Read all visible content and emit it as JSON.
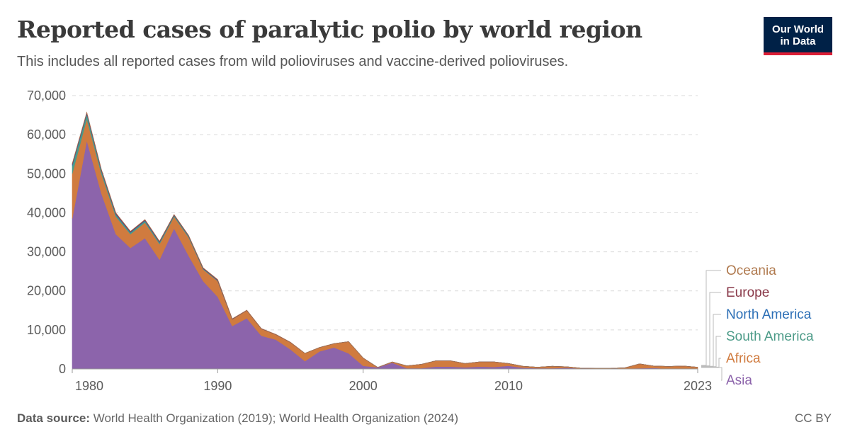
{
  "header": {
    "title": "Reported cases of paralytic polio by world region",
    "subtitle": "This includes all reported cases from wild polioviruses and vaccine-derived polioviruses."
  },
  "logo": {
    "line1": "Our World",
    "line2": "in Data",
    "bg_color": "#002147",
    "accent_color": "#dc1e36"
  },
  "footer": {
    "source_label": "Data source:",
    "source_text": "World Health Organization (2019); World Health Organization (2024)",
    "license": "CC BY"
  },
  "chart_data": {
    "type": "area",
    "stacked": true,
    "title": "Reported cases of paralytic polio by world region",
    "xlabel": "",
    "ylabel": "",
    "ylim": [
      0,
      70000
    ],
    "xlim": [
      1980,
      2023
    ],
    "yticks": [
      0,
      10000,
      20000,
      30000,
      40000,
      50000,
      60000,
      70000
    ],
    "ytick_labels": [
      "0",
      "10,000",
      "20,000",
      "30,000",
      "40,000",
      "50,000",
      "60,000",
      "70,000"
    ],
    "xtick_labels": [
      "1980",
      "1990",
      "2000",
      "2010",
      "2023"
    ],
    "grid": "horizontal-dashed",
    "legend_placement": "right",
    "x": [
      1980,
      1981,
      1982,
      1983,
      1984,
      1985,
      1986,
      1987,
      1988,
      1989,
      1990,
      1991,
      1992,
      1993,
      1994,
      1995,
      1996,
      1997,
      1998,
      1999,
      2000,
      2001,
      2002,
      2003,
      2004,
      2005,
      2006,
      2007,
      2008,
      2009,
      2010,
      2011,
      2012,
      2013,
      2014,
      2015,
      2016,
      2017,
      2018,
      2019,
      2020,
      2021,
      2022,
      2023
    ],
    "series": [
      {
        "name": "Asia",
        "color": "#8c64ab",
        "values": [
          38500,
          58500,
          45000,
          34500,
          31000,
          33500,
          28000,
          36000,
          29000,
          22500,
          18500,
          11000,
          13000,
          8500,
          7500,
          5000,
          2000,
          4500,
          5500,
          4000,
          800,
          400,
          1600,
          200,
          200,
          600,
          600,
          400,
          600,
          500,
          800,
          300,
          200,
          200,
          300,
          100,
          50,
          50,
          100,
          200,
          250,
          50,
          50,
          50
        ]
      },
      {
        "name": "Africa",
        "color": "#d07b3f",
        "values": [
          11500,
          5500,
          5000,
          4500,
          3500,
          4000,
          4000,
          3000,
          4700,
          3000,
          4000,
          1700,
          2000,
          1800,
          1300,
          1800,
          2000,
          1000,
          1000,
          3000,
          2000,
          0,
          200,
          600,
          1000,
          1500,
          1500,
          1000,
          1200,
          1300,
          600,
          400,
          250,
          500,
          250,
          100,
          100,
          100,
          200,
          1100,
          500,
          600,
          700,
          400
        ]
      },
      {
        "name": "South America",
        "color": "#4c9b88",
        "values": [
          2000,
          1200,
          700,
          500,
          400,
          400,
          350,
          300,
          250,
          150,
          100,
          20,
          0,
          0,
          0,
          0,
          0,
          0,
          0,
          0,
          0,
          0,
          0,
          0,
          0,
          0,
          0,
          0,
          0,
          0,
          0,
          0,
          0,
          0,
          0,
          0,
          0,
          0,
          0,
          0,
          0,
          0,
          0,
          0
        ]
      },
      {
        "name": "North America",
        "color": "#2c6fb6",
        "values": [
          300,
          250,
          200,
          200,
          150,
          150,
          150,
          100,
          100,
          100,
          80,
          30,
          0,
          0,
          0,
          0,
          0,
          0,
          0,
          0,
          0,
          0,
          0,
          0,
          0,
          0,
          0,
          0,
          0,
          0,
          0,
          0,
          0,
          0,
          0,
          0,
          0,
          0,
          0,
          0,
          0,
          0,
          0,
          0
        ]
      },
      {
        "name": "Europe",
        "color": "#8a3a4a",
        "values": [
          300,
          250,
          250,
          250,
          200,
          200,
          200,
          150,
          150,
          150,
          200,
          100,
          50,
          50,
          50,
          50,
          0,
          0,
          0,
          0,
          0,
          0,
          0,
          0,
          0,
          0,
          0,
          0,
          0,
          0,
          0,
          0,
          0,
          0,
          0,
          0,
          0,
          0,
          0,
          0,
          0,
          0,
          0,
          0
        ]
      },
      {
        "name": "Oceania",
        "color": "#b07a4f",
        "values": [
          0,
          0,
          0,
          0,
          0,
          0,
          0,
          0,
          0,
          0,
          0,
          0,
          0,
          0,
          0,
          0,
          0,
          0,
          0,
          0,
          0,
          0,
          0,
          0,
          0,
          0,
          0,
          0,
          0,
          0,
          0,
          0,
          0,
          0,
          0,
          0,
          0,
          0,
          0,
          0,
          0,
          0,
          0,
          0
        ]
      }
    ],
    "legend_order": [
      "Oceania",
      "Europe",
      "North America",
      "South America",
      "Africa",
      "Asia"
    ]
  }
}
